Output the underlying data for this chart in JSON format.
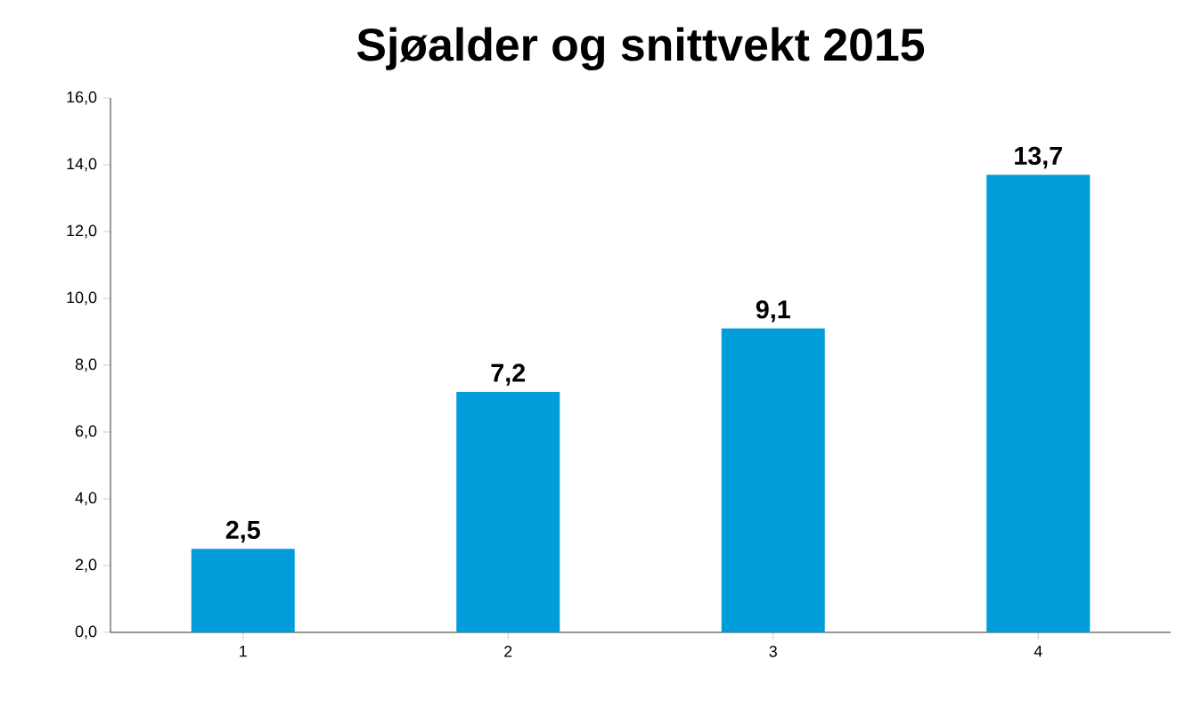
{
  "chart_data": {
    "type": "bar",
    "title": "Sjøalder og snittvekt 2015",
    "categories": [
      "1",
      "2",
      "3",
      "4"
    ],
    "values": [
      2.5,
      7.2,
      9.1,
      13.7
    ],
    "value_labels": [
      "2,5",
      "7,2",
      "9,1",
      "13,7"
    ],
    "color": "#009dda",
    "ylim": [
      0,
      16
    ],
    "yticks": [
      {
        "value": 0,
        "label": "0,0"
      },
      {
        "value": 2,
        "label": "2,0"
      },
      {
        "value": 4,
        "label": "4,0"
      },
      {
        "value": 6,
        "label": "6,0"
      },
      {
        "value": 8,
        "label": "8,0"
      },
      {
        "value": 10,
        "label": "10,0"
      },
      {
        "value": 12,
        "label": "12,0"
      },
      {
        "value": 14,
        "label": "14,0"
      },
      {
        "value": 16,
        "label": "16,0"
      }
    ]
  }
}
